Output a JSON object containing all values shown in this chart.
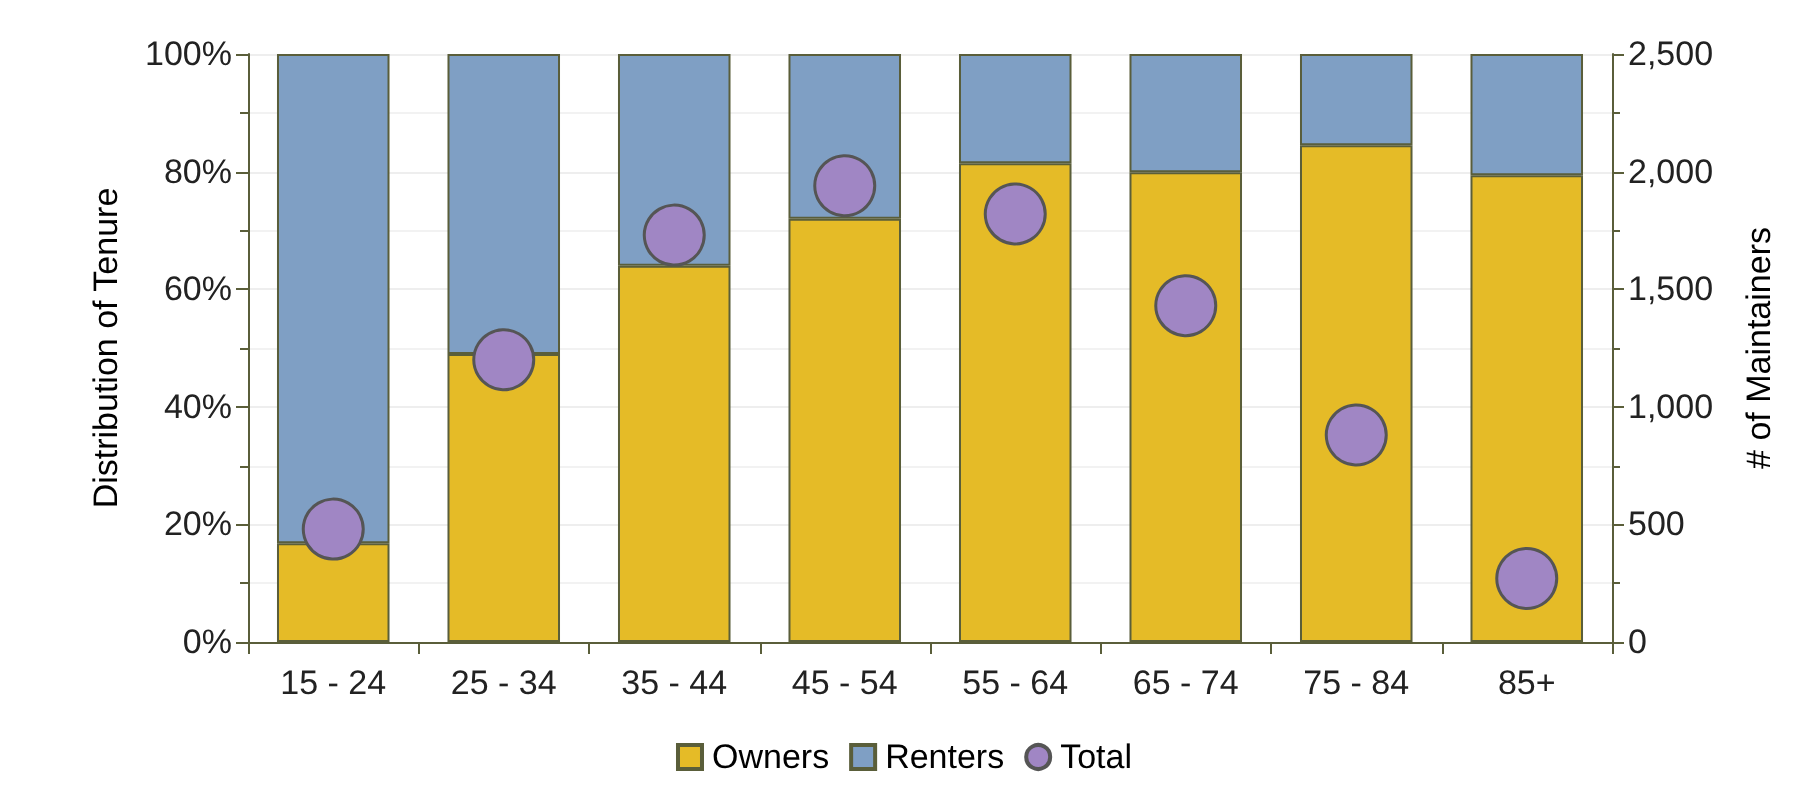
{
  "chart_data": {
    "type": "bar",
    "stacked": true,
    "ylabel": "Distribution of Tenure",
    "y2label": "# of Maintainers",
    "categories": [
      "15 - 24",
      "25 - 34",
      "35 - 44",
      "45 - 54",
      "55 - 64",
      "65 - 74",
      "75 - 84",
      "85+"
    ],
    "series": [
      {
        "name": "Owners",
        "color": "#e5bb27",
        "values": [
          16.8,
          49,
          64,
          72,
          81.4,
          79.9,
          84.5,
          79.4
        ]
      },
      {
        "name": "Renters",
        "color": "#7f9fc4",
        "values": [
          83.2,
          51,
          36,
          28,
          18.6,
          20.1,
          15.5,
          20.6
        ]
      },
      {
        "name": "Total",
        "type": "scatter",
        "axis": "y2",
        "color": "#a086c4",
        "values": [
          480,
          1200,
          1730,
          1940,
          1820,
          1430,
          880,
          270
        ]
      }
    ],
    "ylim": [
      0,
      100
    ],
    "yticks": [
      {
        "value": 0,
        "label": "0%"
      },
      {
        "value": 20,
        "label": "20%"
      },
      {
        "value": 40,
        "label": "40%"
      },
      {
        "value": 60,
        "label": "60%"
      },
      {
        "value": 80,
        "label": "80%"
      },
      {
        "value": 100,
        "label": "100%"
      }
    ],
    "y2lim": [
      0,
      2500
    ],
    "y2ticks": [
      0,
      500,
      {
        "value": 1000,
        "label": "1,000"
      },
      {
        "value": 1500,
        "label": "1,500"
      },
      {
        "value": 2000,
        "label": "2,000"
      },
      {
        "value": 2500,
        "label": "2,500"
      }
    ],
    "grid": "y",
    "legend": "bottom",
    "marker": "circle"
  }
}
